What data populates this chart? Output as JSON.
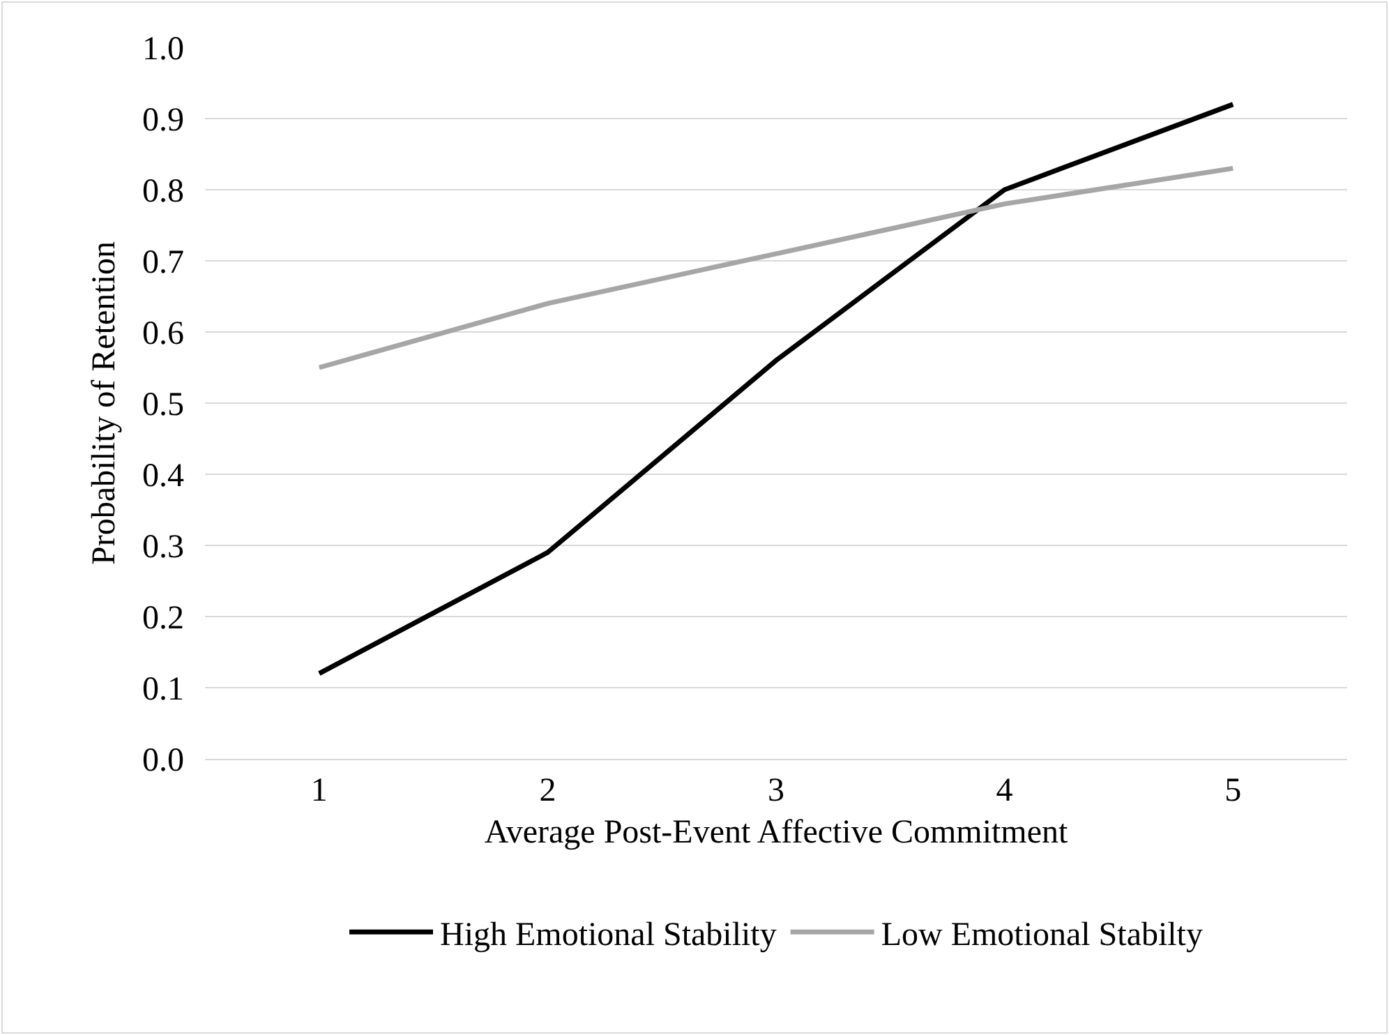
{
  "chart_data": {
    "type": "line",
    "xlabel": "Average Post-Event Affective Commitment",
    "ylabel": "Probability of Retention",
    "categories": [
      "1",
      "2",
      "3",
      "4",
      "5"
    ],
    "series": [
      {
        "name": "High Emotional Stability",
        "color": "#000000",
        "values": [
          0.12,
          0.29,
          0.56,
          0.8,
          0.92
        ]
      },
      {
        "name": "Low Emotional Stabilty",
        "color": "#a6a6a6",
        "values": [
          0.55,
          0.64,
          0.71,
          0.78,
          0.83
        ]
      }
    ],
    "ylim": [
      0,
      1
    ],
    "yticks": [
      {
        "value": 0,
        "label": "0.0"
      },
      0.1,
      0.2,
      0.3,
      0.4,
      0.5,
      0.6,
      0.7,
      0.8,
      0.9,
      {
        "value": 1,
        "label": "1.0"
      }
    ],
    "grid": "y",
    "legend": "bottom",
    "marker": "none",
    "line_style": "solid"
  }
}
